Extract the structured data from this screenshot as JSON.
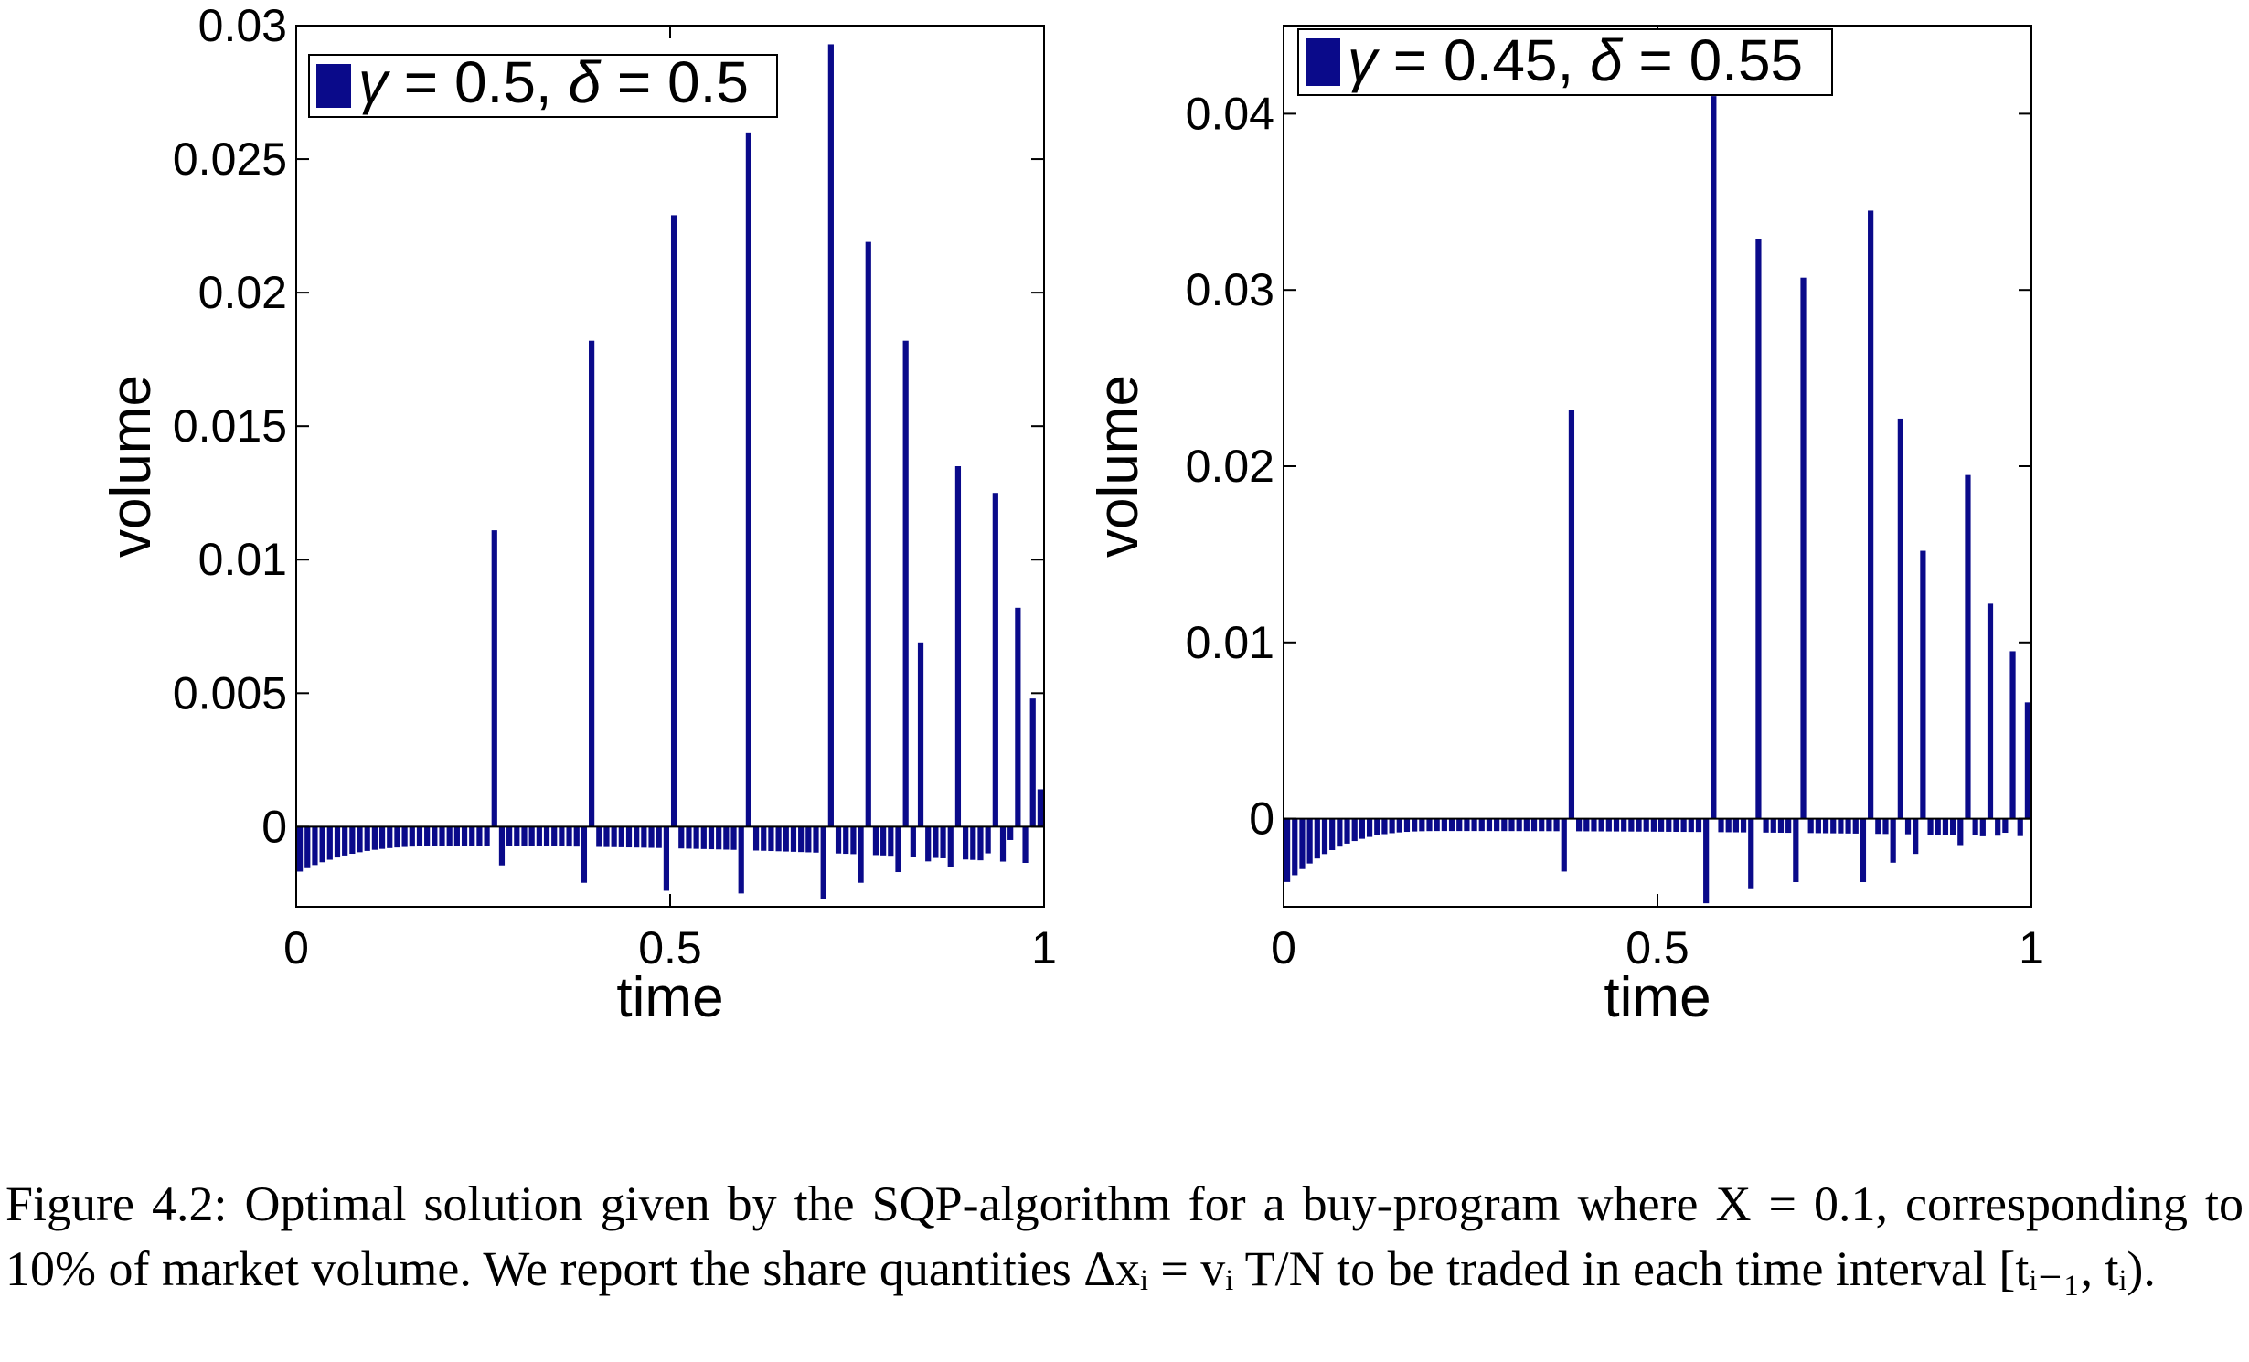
{
  "chart_data": [
    {
      "type": "bar",
      "xlabel": "time",
      "ylabel": "volume",
      "xlim": [
        0,
        1
      ],
      "ylim": [
        -0.003,
        0.03
      ],
      "xticks": [
        "0",
        "0.5",
        "1"
      ],
      "yticks": [
        "0",
        "0.005",
        "0.01",
        "0.015",
        "0.02",
        "0.025",
        "0.03"
      ],
      "color": "#0a0a8a",
      "grid": false,
      "legend_position": "top-left",
      "legend": {
        "gamma": "0.5",
        "delta": "0.5"
      },
      "n_bars": 100,
      "x_start": 0.005,
      "x_step": 0.01,
      "baseline_sell_left": -0.00175,
      "baseline_sell_right": -0.0014,
      "baseline_sell_min": -0.00072,
      "spikes": [
        {
          "x": 0.27,
          "value": 0.0111
        },
        {
          "x": 0.4,
          "value": 0.0182
        },
        {
          "x": 0.51,
          "value": 0.0229
        },
        {
          "x": 0.61,
          "value": 0.026
        },
        {
          "x": 0.72,
          "value": 0.0293
        },
        {
          "x": 0.77,
          "value": 0.0219
        },
        {
          "x": 0.82,
          "value": 0.0182
        },
        {
          "x": 0.84,
          "value": 0.0069
        },
        {
          "x": 0.89,
          "value": 0.0135
        },
        {
          "x": 0.94,
          "value": 0.0125
        },
        {
          "x": 0.97,
          "value": 0.0082
        },
        {
          "x": 0.99,
          "value": 0.0048
        },
        {
          "x": 1.0,
          "value": 0.0014
        }
      ],
      "dips": [
        {
          "x": 0.28,
          "value": -0.00145
        },
        {
          "x": 0.39,
          "value": -0.0021
        },
        {
          "x": 0.5,
          "value": -0.0024
        },
        {
          "x": 0.6,
          "value": -0.0025
        },
        {
          "x": 0.71,
          "value": -0.0027
        },
        {
          "x": 0.76,
          "value": -0.0021
        },
        {
          "x": 0.81,
          "value": -0.0017
        },
        {
          "x": 0.85,
          "value": -0.0013
        },
        {
          "x": 0.88,
          "value": -0.0015
        },
        {
          "x": 0.93,
          "value": -0.001
        },
        {
          "x": 0.96,
          "value": -0.0005
        }
      ]
    },
    {
      "type": "bar",
      "xlabel": "time",
      "ylabel": "volume",
      "xlim": [
        0,
        1
      ],
      "ylim": [
        -0.005,
        0.045
      ],
      "xticks": [
        "0",
        "0.5",
        "1"
      ],
      "yticks": [
        "0",
        "0.01",
        "0.02",
        "0.03",
        "0.04"
      ],
      "color": "#0a0a8a",
      "grid": false,
      "legend_position": "top-left",
      "legend": {
        "gamma": "0.45",
        "delta": "0.55"
      },
      "n_bars": 100,
      "x_start": 0.005,
      "x_step": 0.01,
      "baseline_sell_left": -0.0038,
      "baseline_sell_right": -0.001,
      "baseline_sell_min": -0.0007,
      "spikes": [
        {
          "x": 0.39,
          "value": 0.0232
        },
        {
          "x": 0.58,
          "value": 0.041
        },
        {
          "x": 0.64,
          "value": 0.0329
        },
        {
          "x": 0.7,
          "value": 0.0307
        },
        {
          "x": 0.79,
          "value": 0.0345
        },
        {
          "x": 0.83,
          "value": 0.0227
        },
        {
          "x": 0.86,
          "value": 0.0152
        },
        {
          "x": 0.92,
          "value": 0.0195
        },
        {
          "x": 0.95,
          "value": 0.0122
        },
        {
          "x": 0.98,
          "value": 0.0095
        },
        {
          "x": 1.0,
          "value": 0.0066
        }
      ],
      "dips": [
        {
          "x": 0.38,
          "value": -0.003
        },
        {
          "x": 0.57,
          "value": -0.0048
        },
        {
          "x": 0.63,
          "value": -0.004
        },
        {
          "x": 0.69,
          "value": -0.0036
        },
        {
          "x": 0.78,
          "value": -0.0036
        },
        {
          "x": 0.82,
          "value": -0.0025
        },
        {
          "x": 0.85,
          "value": -0.002
        },
        {
          "x": 0.91,
          "value": -0.0015
        },
        {
          "x": 0.94,
          "value": -0.001
        },
        {
          "x": 0.97,
          "value": -0.0008
        }
      ]
    }
  ],
  "caption": {
    "text": "Figure 4.2: Optimal solution given by the SQP-algorithm for a buy-program where X = 0.1, corresponding to 10% of market volume. We report the share quantities Δxᵢ = vᵢ T/N to be traded in each time interval [tᵢ₋₁, tᵢ)."
  }
}
